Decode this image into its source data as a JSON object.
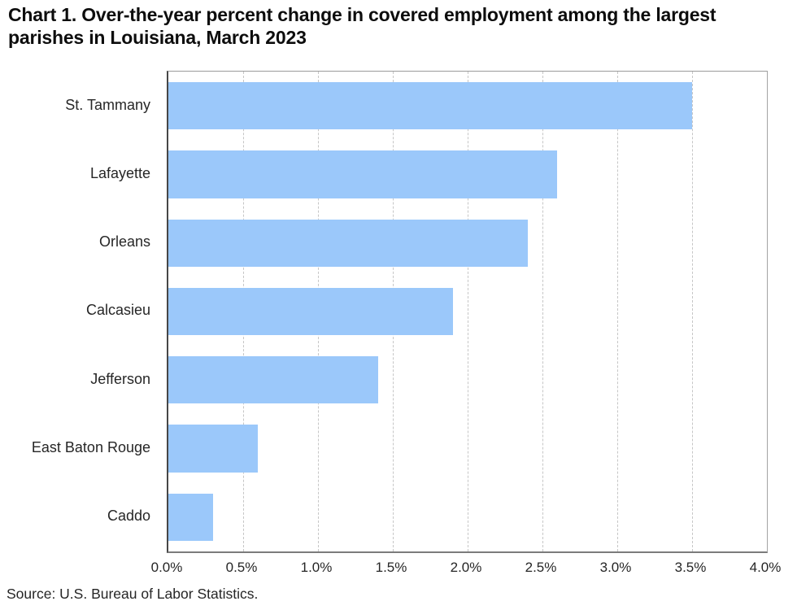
{
  "title": {
    "line1": "Chart 1. Over-the-year percent change in covered employment among the largest",
    "line2": "parishes in Louisiana, March 2023"
  },
  "source": "Source: U.S. Bureau of Labor Statistics.",
  "colors": {
    "bar_fill": "#9BC8FA",
    "gridline": "#c6c6c6",
    "axis_dark": "#474747",
    "plot_border": "#9b9b9b",
    "text": "#262626"
  },
  "chart_data": {
    "type": "bar",
    "orientation": "horizontal",
    "title": "Chart 1. Over-the-year percent change in covered employment among the largest parishes in Louisiana, March 2023",
    "categories": [
      "St. Tammany",
      "Lafayette",
      "Orleans",
      "Calcasieu",
      "Jefferson",
      "East Baton Rouge",
      "Caddo"
    ],
    "values": [
      3.5,
      2.6,
      2.4,
      1.9,
      1.4,
      0.6,
      0.3
    ],
    "unit": "percent",
    "xlabel": "",
    "ylabel": "",
    "xlim": [
      0.0,
      4.0
    ],
    "xtick_step": 0.5,
    "xtick_labels": [
      "0.0%",
      "0.5%",
      "1.0%",
      "1.5%",
      "2.0%",
      "2.5%",
      "3.0%",
      "3.5%",
      "4.0%"
    ],
    "grid": "vertical-dashed",
    "legend": "none",
    "source": "Source: U.S. Bureau of Labor Statistics."
  }
}
